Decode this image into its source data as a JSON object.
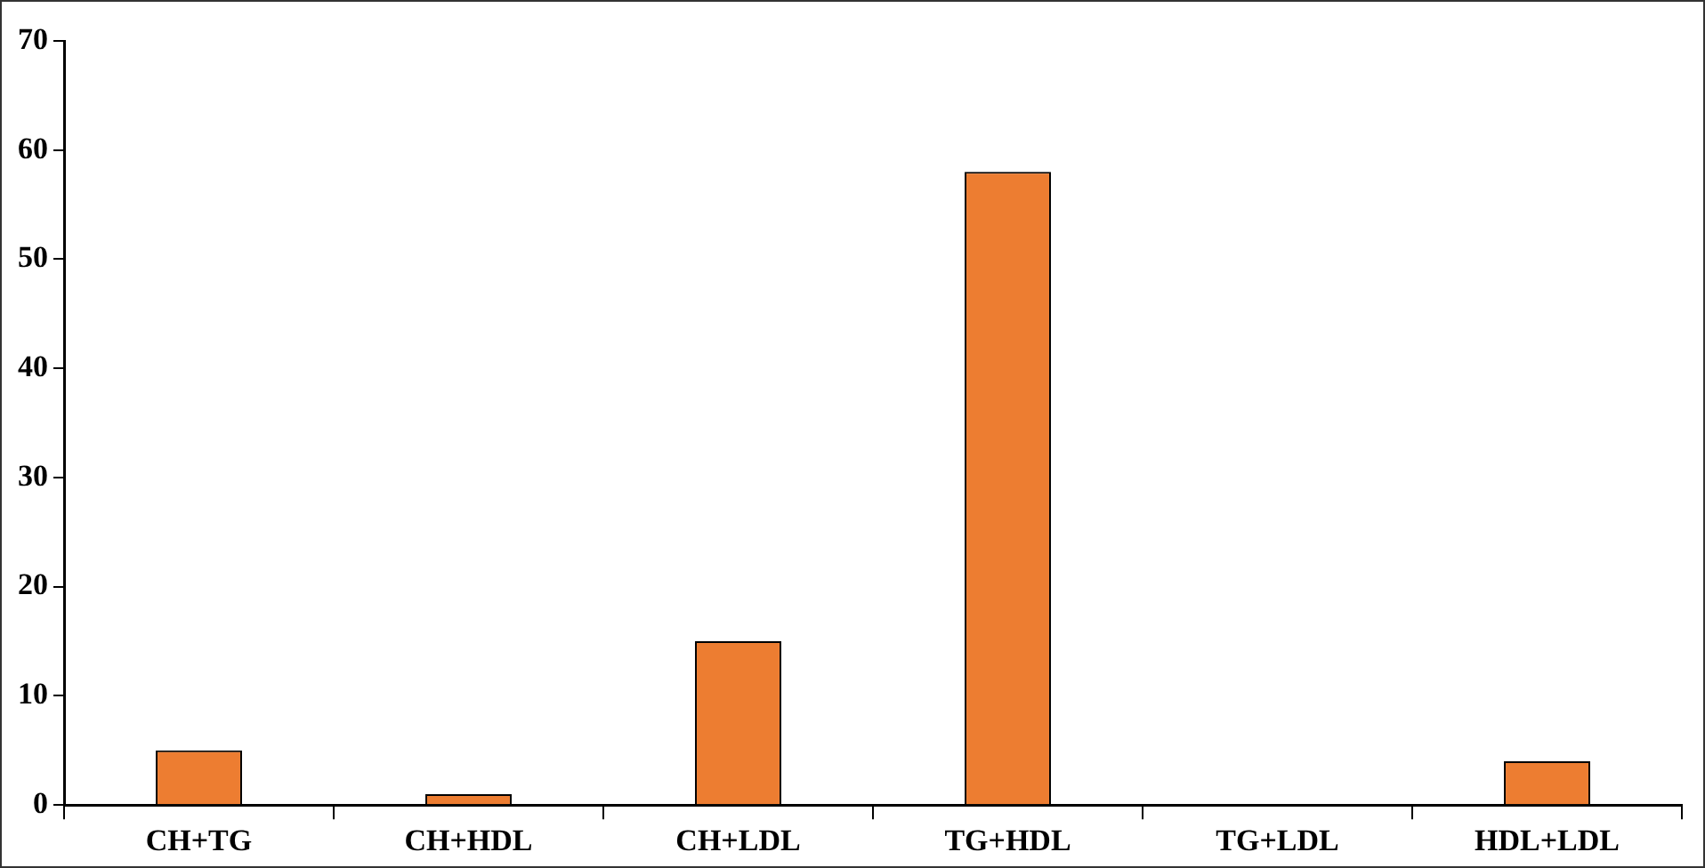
{
  "chart_data": {
    "type": "bar",
    "categories": [
      "CH+TG",
      "CH+HDL",
      "CH+LDL",
      "TG+HDL",
      "TG+LDL",
      "HDL+LDL"
    ],
    "values": [
      5,
      1,
      15,
      58,
      0,
      4
    ],
    "color": "#ed7d31",
    "ylim": [
      0,
      70
    ],
    "yticks": [
      0,
      10,
      20,
      30,
      40,
      50,
      60,
      70
    ],
    "grid": false,
    "legend": false
  }
}
